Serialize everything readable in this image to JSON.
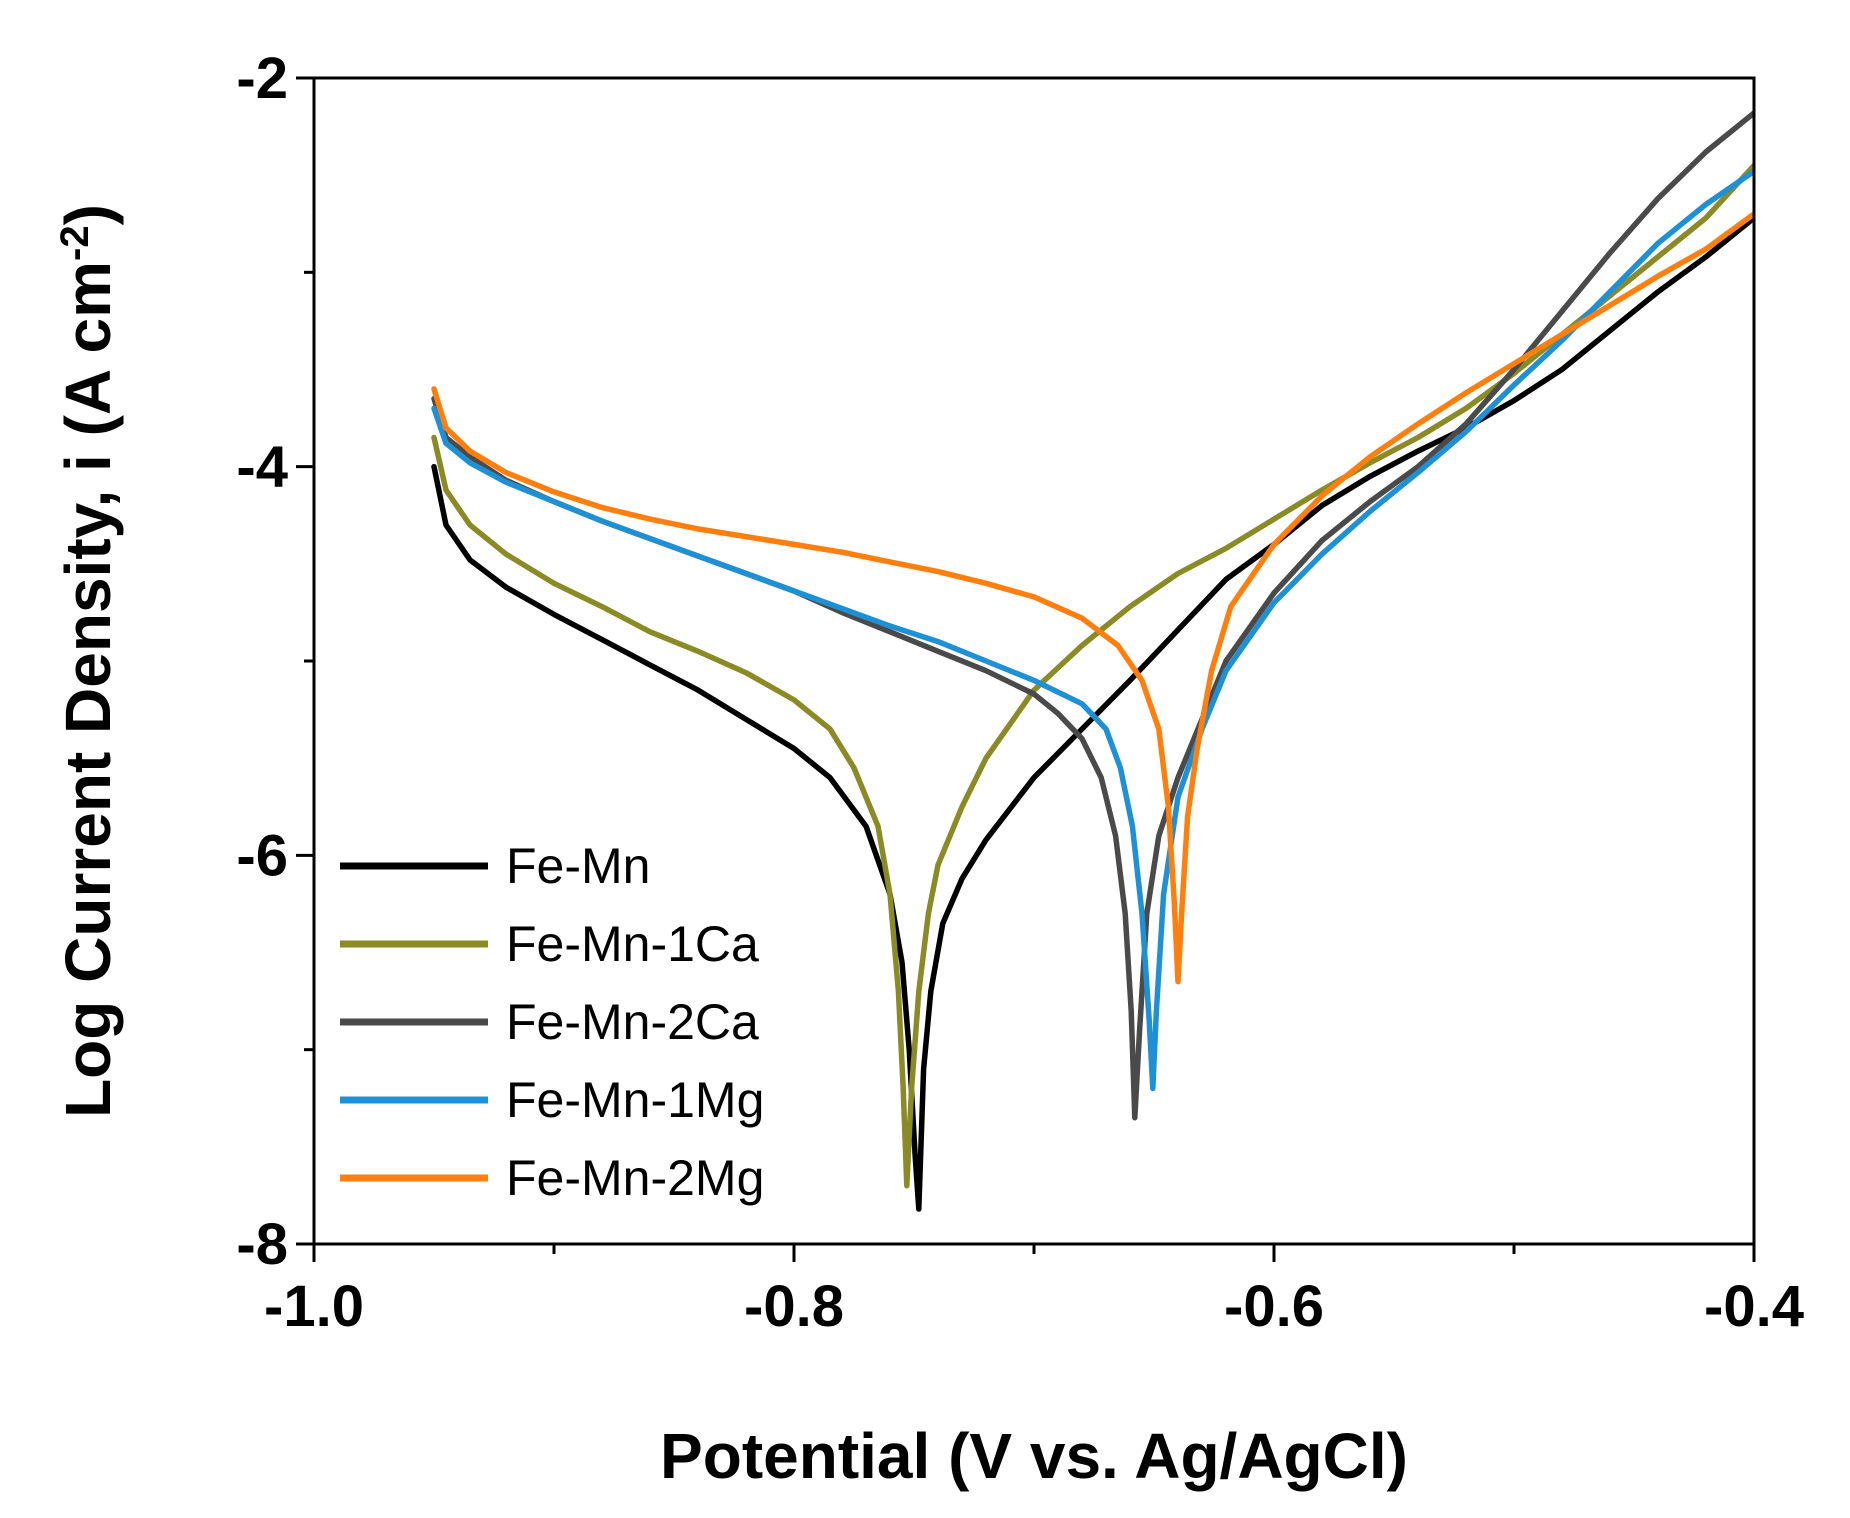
{
  "chart_data": {
    "type": "line",
    "title": "",
    "xlabel": "Potential (V vs. Ag/AgCl)",
    "ylabel": "Log Current Density, i (A cm",
    "ylabel_superscript": "-2",
    "ylabel_suffix": ")",
    "xlim": [
      -1.0,
      -0.4
    ],
    "ylim": [
      -8,
      -2
    ],
    "x_ticks": [
      -1.0,
      -0.8,
      -0.6,
      -0.4
    ],
    "x_tick_labels": [
      "-1.0",
      "-0.8",
      "-0.6",
      "-0.4"
    ],
    "x_minor_ticks": [
      -0.9,
      -0.7,
      -0.5
    ],
    "y_ticks": [
      -8,
      -6,
      -4,
      -2
    ],
    "y_tick_labels": [
      "-8",
      "-6",
      "-4",
      "-2"
    ],
    "y_minor_ticks": [
      -7,
      -5,
      -3
    ],
    "grid": false,
    "legend_position": "bottom-left",
    "series": [
      {
        "name": "Fe-Mn",
        "color": "#000000",
        "points": [
          [
            -0.95,
            -4.0
          ],
          [
            -0.945,
            -4.3
          ],
          [
            -0.935,
            -4.48
          ],
          [
            -0.92,
            -4.62
          ],
          [
            -0.9,
            -4.76
          ],
          [
            -0.88,
            -4.89
          ],
          [
            -0.86,
            -5.02
          ],
          [
            -0.84,
            -5.15
          ],
          [
            -0.82,
            -5.3
          ],
          [
            -0.8,
            -5.45
          ],
          [
            -0.785,
            -5.6
          ],
          [
            -0.77,
            -5.85
          ],
          [
            -0.76,
            -6.2
          ],
          [
            -0.755,
            -6.55
          ],
          [
            -0.752,
            -7.0
          ],
          [
            -0.7495,
            -7.55
          ],
          [
            -0.748,
            -7.82
          ],
          [
            -0.746,
            -7.1
          ],
          [
            -0.743,
            -6.7
          ],
          [
            -0.738,
            -6.35
          ],
          [
            -0.73,
            -6.12
          ],
          [
            -0.72,
            -5.92
          ],
          [
            -0.7,
            -5.6
          ],
          [
            -0.68,
            -5.35
          ],
          [
            -0.66,
            -5.1
          ],
          [
            -0.64,
            -4.84
          ],
          [
            -0.62,
            -4.58
          ],
          [
            -0.6,
            -4.4
          ],
          [
            -0.58,
            -4.2
          ],
          [
            -0.56,
            -4.05
          ],
          [
            -0.54,
            -3.92
          ],
          [
            -0.52,
            -3.8
          ],
          [
            -0.5,
            -3.66
          ],
          [
            -0.48,
            -3.5
          ],
          [
            -0.46,
            -3.3
          ],
          [
            -0.44,
            -3.1
          ],
          [
            -0.42,
            -2.92
          ],
          [
            -0.4,
            -2.72
          ]
        ]
      },
      {
        "name": "Fe-Mn-1Ca",
        "color": "#8b8b26",
        "points": [
          [
            -0.95,
            -3.85
          ],
          [
            -0.945,
            -4.12
          ],
          [
            -0.935,
            -4.3
          ],
          [
            -0.92,
            -4.45
          ],
          [
            -0.9,
            -4.6
          ],
          [
            -0.88,
            -4.72
          ],
          [
            -0.86,
            -4.85
          ],
          [
            -0.84,
            -4.95
          ],
          [
            -0.82,
            -5.06
          ],
          [
            -0.8,
            -5.2
          ],
          [
            -0.785,
            -5.35
          ],
          [
            -0.775,
            -5.55
          ],
          [
            -0.765,
            -5.85
          ],
          [
            -0.76,
            -6.2
          ],
          [
            -0.7565,
            -6.7
          ],
          [
            -0.7545,
            -7.2
          ],
          [
            -0.753,
            -7.7
          ],
          [
            -0.751,
            -7.2
          ],
          [
            -0.748,
            -6.7
          ],
          [
            -0.744,
            -6.3
          ],
          [
            -0.74,
            -6.05
          ],
          [
            -0.73,
            -5.75
          ],
          [
            -0.72,
            -5.5
          ],
          [
            -0.7,
            -5.15
          ],
          [
            -0.68,
            -4.92
          ],
          [
            -0.66,
            -4.72
          ],
          [
            -0.64,
            -4.55
          ],
          [
            -0.62,
            -4.42
          ],
          [
            -0.6,
            -4.27
          ],
          [
            -0.58,
            -4.12
          ],
          [
            -0.56,
            -3.98
          ],
          [
            -0.54,
            -3.85
          ],
          [
            -0.52,
            -3.7
          ],
          [
            -0.5,
            -3.52
          ],
          [
            -0.48,
            -3.32
          ],
          [
            -0.46,
            -3.12
          ],
          [
            -0.44,
            -2.92
          ],
          [
            -0.42,
            -2.72
          ],
          [
            -0.4,
            -2.45
          ]
        ]
      },
      {
        "name": "Fe-Mn-2Ca",
        "color": "#4a4a4a",
        "points": [
          [
            -0.95,
            -3.65
          ],
          [
            -0.945,
            -3.85
          ],
          [
            -0.935,
            -3.95
          ],
          [
            -0.92,
            -4.07
          ],
          [
            -0.9,
            -4.18
          ],
          [
            -0.88,
            -4.28
          ],
          [
            -0.86,
            -4.37
          ],
          [
            -0.84,
            -4.46
          ],
          [
            -0.82,
            -4.55
          ],
          [
            -0.8,
            -4.64
          ],
          [
            -0.78,
            -4.75
          ],
          [
            -0.76,
            -4.85
          ],
          [
            -0.74,
            -4.95
          ],
          [
            -0.72,
            -5.05
          ],
          [
            -0.7,
            -5.17
          ],
          [
            -0.69,
            -5.27
          ],
          [
            -0.68,
            -5.4
          ],
          [
            -0.672,
            -5.6
          ],
          [
            -0.666,
            -5.9
          ],
          [
            -0.662,
            -6.3
          ],
          [
            -0.6595,
            -6.8
          ],
          [
            -0.658,
            -7.35
          ],
          [
            -0.656,
            -6.9
          ],
          [
            -0.653,
            -6.3
          ],
          [
            -0.648,
            -5.9
          ],
          [
            -0.64,
            -5.6
          ],
          [
            -0.63,
            -5.3
          ],
          [
            -0.62,
            -5.0
          ],
          [
            -0.6,
            -4.65
          ],
          [
            -0.58,
            -4.38
          ],
          [
            -0.56,
            -4.18
          ],
          [
            -0.54,
            -4.0
          ],
          [
            -0.52,
            -3.78
          ],
          [
            -0.5,
            -3.5
          ],
          [
            -0.48,
            -3.2
          ],
          [
            -0.46,
            -2.9
          ],
          [
            -0.44,
            -2.62
          ],
          [
            -0.42,
            -2.38
          ],
          [
            -0.4,
            -2.18
          ]
        ]
      },
      {
        "name": "Fe-Mn-1Mg",
        "color": "#1e90d6",
        "points": [
          [
            -0.95,
            -3.7
          ],
          [
            -0.945,
            -3.88
          ],
          [
            -0.935,
            -3.98
          ],
          [
            -0.92,
            -4.08
          ],
          [
            -0.9,
            -4.18
          ],
          [
            -0.88,
            -4.28
          ],
          [
            -0.86,
            -4.37
          ],
          [
            -0.84,
            -4.46
          ],
          [
            -0.82,
            -4.55
          ],
          [
            -0.8,
            -4.64
          ],
          [
            -0.78,
            -4.73
          ],
          [
            -0.76,
            -4.82
          ],
          [
            -0.74,
            -4.9
          ],
          [
            -0.72,
            -5.0
          ],
          [
            -0.7,
            -5.1
          ],
          [
            -0.68,
            -5.22
          ],
          [
            -0.67,
            -5.35
          ],
          [
            -0.664,
            -5.55
          ],
          [
            -0.659,
            -5.85
          ],
          [
            -0.655,
            -6.3
          ],
          [
            -0.652,
            -6.85
          ],
          [
            -0.6505,
            -7.2
          ],
          [
            -0.649,
            -6.8
          ],
          [
            -0.646,
            -6.2
          ],
          [
            -0.64,
            -5.7
          ],
          [
            -0.63,
            -5.35
          ],
          [
            -0.62,
            -5.05
          ],
          [
            -0.6,
            -4.7
          ],
          [
            -0.58,
            -4.45
          ],
          [
            -0.56,
            -4.23
          ],
          [
            -0.54,
            -4.03
          ],
          [
            -0.52,
            -3.82
          ],
          [
            -0.5,
            -3.58
          ],
          [
            -0.48,
            -3.35
          ],
          [
            -0.46,
            -3.1
          ],
          [
            -0.44,
            -2.85
          ],
          [
            -0.42,
            -2.65
          ],
          [
            -0.4,
            -2.48
          ]
        ]
      },
      {
        "name": "Fe-Mn-2Mg",
        "color": "#ff7f0e",
        "points": [
          [
            -0.95,
            -3.6
          ],
          [
            -0.945,
            -3.8
          ],
          [
            -0.935,
            -3.92
          ],
          [
            -0.92,
            -4.03
          ],
          [
            -0.9,
            -4.13
          ],
          [
            -0.88,
            -4.21
          ],
          [
            -0.86,
            -4.27
          ],
          [
            -0.84,
            -4.32
          ],
          [
            -0.82,
            -4.36
          ],
          [
            -0.8,
            -4.4
          ],
          [
            -0.78,
            -4.44
          ],
          [
            -0.76,
            -4.49
          ],
          [
            -0.74,
            -4.54
          ],
          [
            -0.72,
            -4.6
          ],
          [
            -0.7,
            -4.67
          ],
          [
            -0.68,
            -4.78
          ],
          [
            -0.665,
            -4.92
          ],
          [
            -0.655,
            -5.1
          ],
          [
            -0.648,
            -5.35
          ],
          [
            -0.644,
            -5.75
          ],
          [
            -0.6415,
            -6.25
          ],
          [
            -0.64,
            -6.65
          ],
          [
            -0.6385,
            -6.3
          ],
          [
            -0.636,
            -5.8
          ],
          [
            -0.632,
            -5.45
          ],
          [
            -0.626,
            -5.05
          ],
          [
            -0.618,
            -4.72
          ],
          [
            -0.6,
            -4.4
          ],
          [
            -0.58,
            -4.15
          ],
          [
            -0.56,
            -3.95
          ],
          [
            -0.54,
            -3.78
          ],
          [
            -0.52,
            -3.62
          ],
          [
            -0.5,
            -3.47
          ],
          [
            -0.48,
            -3.32
          ],
          [
            -0.46,
            -3.17
          ],
          [
            -0.44,
            -3.02
          ],
          [
            -0.42,
            -2.88
          ],
          [
            -0.4,
            -2.7
          ]
        ]
      }
    ]
  }
}
